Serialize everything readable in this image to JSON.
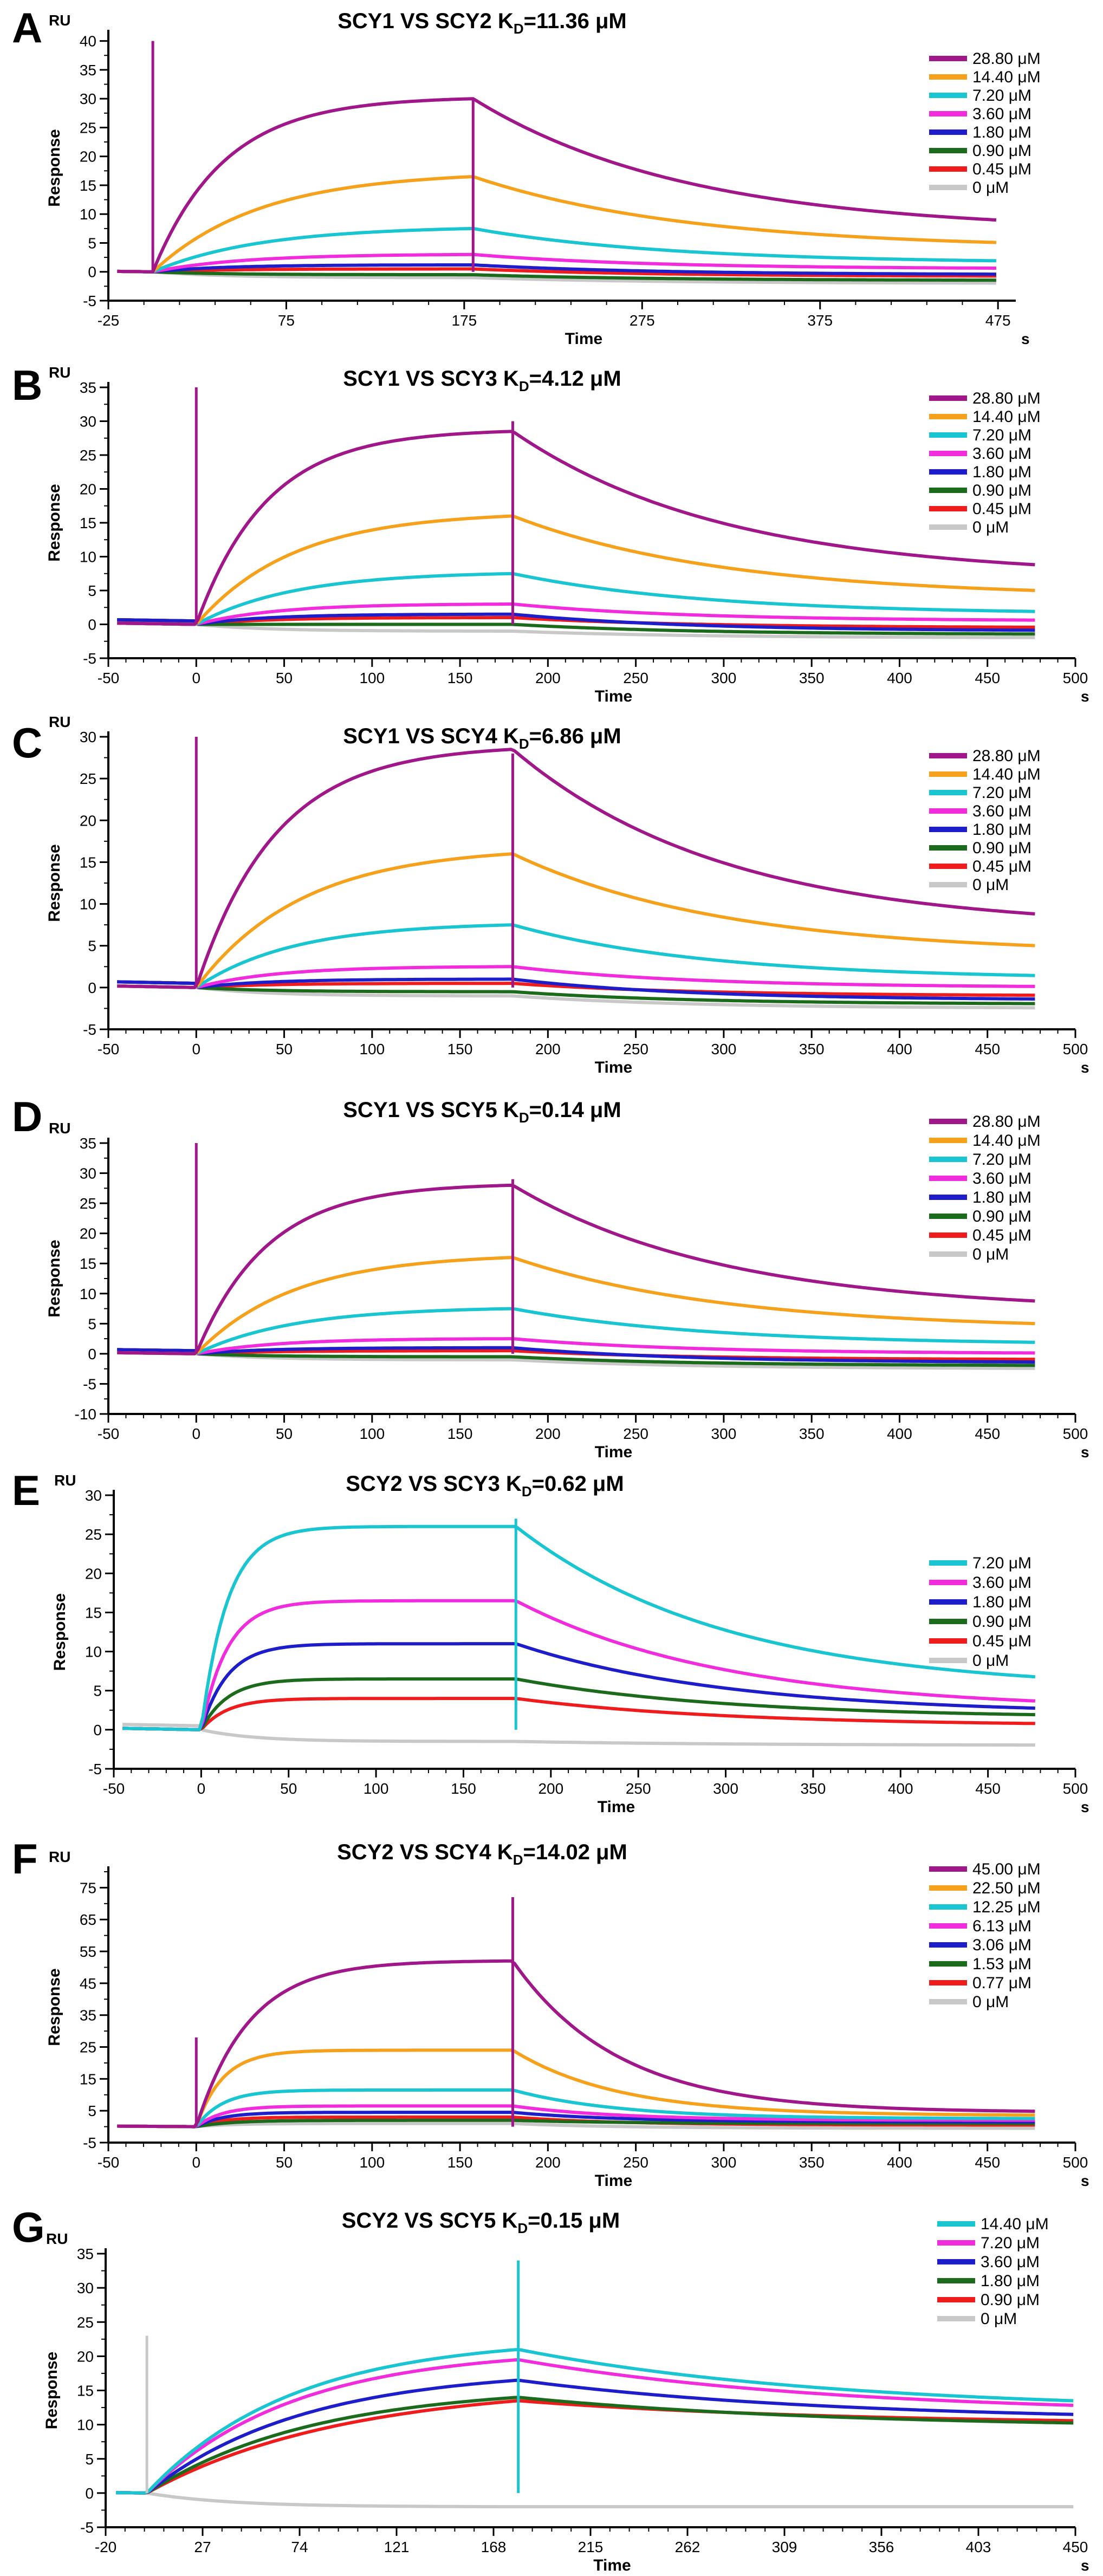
{
  "chart_data": [
    {
      "panel": "A",
      "type": "line",
      "title": "SCY1 VS SCY2   K",
      "title_sub": "D",
      "title_value": "=11.36 μM",
      "xlabel": "Time",
      "ylabel": "Response",
      "yunit": "RU",
      "xunit": "s",
      "xlim": [
        -25,
        485
      ],
      "ylim": [
        -5,
        41
      ],
      "xticks": [
        -25,
        75,
        175,
        275,
        375,
        475
      ],
      "yticks": [
        -5,
        0,
        5,
        10,
        15,
        20,
        25,
        30,
        35,
        40
      ],
      "x_end": 475,
      "spikes": [
        [
          0,
          40
        ],
        [
          180,
          30
        ]
      ],
      "legend_pos": "top-right",
      "series": [
        {
          "name": "28.80 μM",
          "color": "#a0178a",
          "assoc": 30,
          "dis": 7,
          "tau_a": 40,
          "tau_d": 120,
          "offset": 0
        },
        {
          "name": "14.40 μM",
          "color": "#f5a11c",
          "assoc": 16.5,
          "dis": 4,
          "tau_a": 60,
          "tau_d": 120,
          "offset": 0
        },
        {
          "name": "7.20  μM",
          "color": "#19c5d0",
          "assoc": 7.5,
          "dis": 1.5,
          "tau_a": 60,
          "tau_d": 110,
          "offset": 0
        },
        {
          "name": "3.60  μM",
          "color": "#f12cdd",
          "assoc": 3,
          "dis": 0.5,
          "tau_a": 50,
          "tau_d": 100,
          "offset": 0
        },
        {
          "name": "1.80  μM",
          "color": "#1d1dc9",
          "assoc": 1.2,
          "dis": -0.5,
          "tau_a": 40,
          "tau_d": 100,
          "offset": 0
        },
        {
          "name": "0.90  μM",
          "color": "#1c6b1c",
          "assoc": -0.5,
          "dis": -1.5,
          "tau_a": 40,
          "tau_d": 100,
          "offset": 0
        },
        {
          "name": "0.45  μM",
          "color": "#ee1c1c",
          "assoc": 0.5,
          "dis": -0.8,
          "tau_a": 40,
          "tau_d": 100,
          "offset": 0
        },
        {
          "name": "0      μM",
          "color": "#c8c8c8",
          "assoc": -1,
          "dis": -2,
          "tau_a": 40,
          "tau_d": 100,
          "offset": 0
        }
      ]
    },
    {
      "panel": "B",
      "type": "line",
      "title": "SCY1 VS SCY3   K",
      "title_sub": "D",
      "title_value": "=4.12 μM",
      "xlabel": "Time",
      "ylabel": "Response",
      "yunit": "RU",
      "xunit": "s",
      "xlim": [
        -50,
        500
      ],
      "ylim": [
        -5,
        35
      ],
      "xticks": [
        -50,
        0,
        50,
        100,
        150,
        200,
        250,
        300,
        350,
        400,
        450,
        500
      ],
      "yticks": [
        -5,
        0,
        5,
        10,
        15,
        20,
        25,
        30,
        35
      ],
      "x_end": 478,
      "spikes": [
        [
          0,
          35
        ],
        [
          180,
          30
        ]
      ],
      "legend_pos": "top-right",
      "series": [
        {
          "name": "28.80 μM",
          "color": "#a0178a",
          "assoc": 28.5,
          "dis": 7,
          "tau_a": 40,
          "tau_d": 120,
          "offset": 0
        },
        {
          "name": "14.40 μM",
          "color": "#f5a11c",
          "assoc": 16,
          "dis": 4,
          "tau_a": 55,
          "tau_d": 120,
          "offset": 0
        },
        {
          "name": "7.20  μM",
          "color": "#19c5d0",
          "assoc": 7.5,
          "dis": 1.5,
          "tau_a": 55,
          "tau_d": 110,
          "offset": 0
        },
        {
          "name": "3.60  μM",
          "color": "#f12cdd",
          "assoc": 3,
          "dis": 0.5,
          "tau_a": 45,
          "tau_d": 100,
          "offset": 0
        },
        {
          "name": "1.80  μM",
          "color": "#1d1dc9",
          "assoc": 1.5,
          "dis": -1,
          "tau_a": 40,
          "tau_d": 100,
          "offset": 0.5
        },
        {
          "name": "0.90  μM",
          "color": "#1c6b1c",
          "assoc": 0,
          "dis": -1.5,
          "tau_a": 40,
          "tau_d": 100,
          "offset": 0.5
        },
        {
          "name": "0.45  μM",
          "color": "#ee1c1c",
          "assoc": 1,
          "dis": -0.5,
          "tau_a": 40,
          "tau_d": 100,
          "offset": 0.5
        },
        {
          "name": "0      μM",
          "color": "#c8c8c8",
          "assoc": -1,
          "dis": -2,
          "tau_a": 40,
          "tau_d": 100,
          "offset": 0.5
        }
      ]
    },
    {
      "panel": "C",
      "type": "line",
      "title": "SCY1 VS SCY4   K",
      "title_sub": "D",
      "title_value": "=6.86 μM",
      "xlabel": "Time",
      "ylabel": "Response",
      "yunit": "RU",
      "xunit": "s",
      "xlim": [
        -50,
        500
      ],
      "ylim": [
        -5,
        30
      ],
      "xticks": [
        -50,
        0,
        50,
        100,
        150,
        200,
        250,
        300,
        350,
        400,
        450,
        500
      ],
      "yticks": [
        -5,
        0,
        5,
        10,
        15,
        20,
        25,
        30
      ],
      "x_end": 478,
      "spikes": [
        [
          0,
          30
        ],
        [
          180,
          28
        ]
      ],
      "legend_pos": "top-right",
      "series": [
        {
          "name": "28.80 μM",
          "color": "#a0178a",
          "assoc": 28.5,
          "dis": 7,
          "tau_a": 45,
          "tau_d": 120,
          "offset": 0
        },
        {
          "name": "14.40 μM",
          "color": "#f5a11c",
          "assoc": 16,
          "dis": 4,
          "tau_a": 60,
          "tau_d": 120,
          "offset": 0
        },
        {
          "name": "7.20  μM",
          "color": "#19c5d0",
          "assoc": 7.5,
          "dis": 1,
          "tau_a": 55,
          "tau_d": 110,
          "offset": 0
        },
        {
          "name": "3.60  μM",
          "color": "#f12cdd",
          "assoc": 2.5,
          "dis": 0,
          "tau_a": 45,
          "tau_d": 100,
          "offset": 0
        },
        {
          "name": "1.80  μM",
          "color": "#1d1dc9",
          "assoc": 1,
          "dis": -1.5,
          "tau_a": 40,
          "tau_d": 100,
          "offset": 0.5
        },
        {
          "name": "0.90  μM",
          "color": "#1c6b1c",
          "assoc": -0.5,
          "dis": -2,
          "tau_a": 40,
          "tau_d": 100,
          "offset": 0.5
        },
        {
          "name": "0.45  μM",
          "color": "#ee1c1c",
          "assoc": 0.5,
          "dis": -1,
          "tau_a": 40,
          "tau_d": 100,
          "offset": 0.5
        },
        {
          "name": "0      μM",
          "color": "#c8c8c8",
          "assoc": -1,
          "dis": -2.5,
          "tau_a": 40,
          "tau_d": 100,
          "offset": 0.5
        }
      ]
    },
    {
      "panel": "D",
      "type": "line",
      "title": "SCY1 VS SCY5   K",
      "title_sub": "D",
      "title_value": "=0.14 μM",
      "xlabel": "Time",
      "ylabel": "Response",
      "yunit": "RU",
      "xunit": "s",
      "xlim": [
        -50,
        500
      ],
      "ylim": [
        -10,
        35
      ],
      "xticks": [
        -50,
        0,
        50,
        100,
        150,
        200,
        250,
        300,
        350,
        400,
        450,
        500
      ],
      "yticks": [
        -10,
        -5,
        0,
        5,
        10,
        15,
        20,
        25,
        30,
        35
      ],
      "x_end": 478,
      "spikes": [
        [
          0,
          35
        ],
        [
          180,
          29
        ]
      ],
      "legend_pos": "top-right",
      "series": [
        {
          "name": "28.80 μM",
          "color": "#a0178a",
          "assoc": 28,
          "dis": 7,
          "tau_a": 40,
          "tau_d": 120,
          "offset": 0
        },
        {
          "name": "14.40 μM",
          "color": "#f5a11c",
          "assoc": 16,
          "dis": 4,
          "tau_a": 55,
          "tau_d": 120,
          "offset": 0
        },
        {
          "name": "7.20  μM",
          "color": "#19c5d0",
          "assoc": 7.5,
          "dis": 1.5,
          "tau_a": 55,
          "tau_d": 110,
          "offset": 0
        },
        {
          "name": "3.60  μM",
          "color": "#f12cdd",
          "assoc": 2.5,
          "dis": 0,
          "tau_a": 45,
          "tau_d": 100,
          "offset": 0
        },
        {
          "name": "1.80  μM",
          "color": "#1d1dc9",
          "assoc": 1,
          "dis": -1.5,
          "tau_a": 40,
          "tau_d": 100,
          "offset": 0.5
        },
        {
          "name": "0.90  μM",
          "color": "#1c6b1c",
          "assoc": -0.5,
          "dis": -2,
          "tau_a": 40,
          "tau_d": 100,
          "offset": 0.5
        },
        {
          "name": "0.45  μM",
          "color": "#ee1c1c",
          "assoc": 0.5,
          "dis": -1,
          "tau_a": 40,
          "tau_d": 100,
          "offset": 0.5
        },
        {
          "name": "0      μM",
          "color": "#c8c8c8",
          "assoc": -1,
          "dis": -2.5,
          "tau_a": 40,
          "tau_d": 100,
          "offset": 0.5
        }
      ]
    },
    {
      "panel": "E",
      "type": "line",
      "title": "SCY2 VS SCY3   K",
      "title_sub": "D",
      "title_value": "=0.62 μM",
      "xlabel": "Time",
      "ylabel": "Response",
      "yunit": "RU",
      "xunit": "s",
      "xlim": [
        -50,
        500
      ],
      "ylim": [
        -5,
        30
      ],
      "xticks": [
        -50,
        0,
        50,
        100,
        150,
        200,
        250,
        300,
        350,
        400,
        450,
        500
      ],
      "yticks": [
        -5,
        0,
        5,
        10,
        15,
        20,
        25,
        30
      ],
      "x_end": 478,
      "spikes": [
        [
          180,
          27
        ]
      ],
      "legend_pos": "right",
      "series": [
        {
          "name": "7.20  μM",
          "color": "#19c5d0",
          "assoc": 26,
          "dis": 5,
          "tau_a": 15,
          "tau_d": 120,
          "offset": 0
        },
        {
          "name": "3.60  μM",
          "color": "#f12cdd",
          "assoc": 16.5,
          "dis": 2.5,
          "tau_a": 15,
          "tau_d": 120,
          "offset": 0
        },
        {
          "name": "1.80  μM",
          "color": "#1d1dc9",
          "assoc": 11,
          "dis": 2,
          "tau_a": 15,
          "tau_d": 120,
          "offset": 0
        },
        {
          "name": "0.90  μM",
          "color": "#1c6b1c",
          "assoc": 6.5,
          "dis": 1.5,
          "tau_a": 15,
          "tau_d": 120,
          "offset": 0
        },
        {
          "name": "0.45  μM",
          "color": "#ee1c1c",
          "assoc": 4,
          "dis": 0.5,
          "tau_a": 15,
          "tau_d": 120,
          "offset": 0
        },
        {
          "name": "0      μM",
          "color": "#c8c8c8",
          "assoc": -1.5,
          "dis": -2,
          "tau_a": 30,
          "tau_d": 120,
          "offset": 0.5
        }
      ]
    },
    {
      "panel": "F",
      "type": "line",
      "title": "SCY2 VS SCY4   K",
      "title_sub": "D",
      "title_value": "=14.02 μM",
      "xlabel": "Time",
      "ylabel": "Response",
      "yunit": "RU",
      "xunit": "s",
      "xlim": [
        -50,
        500
      ],
      "ylim": [
        -5,
        80
      ],
      "xticks": [
        -50,
        0,
        50,
        100,
        150,
        200,
        250,
        300,
        350,
        400,
        450,
        500
      ],
      "yticks": [
        -5,
        5,
        15,
        25,
        35,
        45,
        55,
        65,
        75
      ],
      "x_end": 478,
      "spikes": [
        [
          0,
          28
        ],
        [
          180,
          72
        ]
      ],
      "legend_pos": "top-right",
      "series": [
        {
          "name": "45.00 μM",
          "color": "#a0178a",
          "assoc": 52,
          "dis": 4.5,
          "tau_a": 30,
          "tau_d": 60,
          "offset": 0
        },
        {
          "name": "22.50 μM",
          "color": "#f5a11c",
          "assoc": 24,
          "dis": 3.5,
          "tau_a": 15,
          "tau_d": 60,
          "offset": 0
        },
        {
          "name": "12.25 μM",
          "color": "#19c5d0",
          "assoc": 11.5,
          "dis": 2.5,
          "tau_a": 15,
          "tau_d": 60,
          "offset": 0
        },
        {
          "name": "6.13  μM",
          "color": "#f12cdd",
          "assoc": 6.5,
          "dis": 2,
          "tau_a": 15,
          "tau_d": 60,
          "offset": 0
        },
        {
          "name": "3.06  μM",
          "color": "#1d1dc9",
          "assoc": 4.5,
          "dis": 1.5,
          "tau_a": 15,
          "tau_d": 60,
          "offset": 0
        },
        {
          "name": "1.53  μM",
          "color": "#1c6b1c",
          "assoc": 2,
          "dis": 1,
          "tau_a": 20,
          "tau_d": 60,
          "offset": 0
        },
        {
          "name": "0.77  μM",
          "color": "#ee1c1c",
          "assoc": 3,
          "dis": 0.5,
          "tau_a": 15,
          "tau_d": 60,
          "offset": 0
        },
        {
          "name": "0      μM",
          "color": "#c8c8c8",
          "assoc": 1,
          "dis": -0.5,
          "tau_a": 20,
          "tau_d": 60,
          "offset": 0
        }
      ]
    },
    {
      "panel": "G",
      "type": "line",
      "title": "SCY2 VS SCY5   K",
      "title_sub": "D",
      "title_value": "=0.15 μM",
      "xlabel": "Time",
      "ylabel": "Response",
      "yunit": "RU",
      "xunit": "s",
      "xlim": [
        -20,
        450
      ],
      "ylim": [
        -5,
        35
      ],
      "xticks": [
        -20,
        27,
        74,
        121,
        168,
        215,
        262,
        309,
        356,
        403,
        450
      ],
      "yticks": [
        -5,
        0,
        5,
        10,
        15,
        20,
        25,
        30,
        35
      ],
      "x_end": 450,
      "spikes": [
        [
          0,
          23
        ],
        [
          180,
          34
        ]
      ],
      "legend_pos": "top-right",
      "series": [
        {
          "name": "14.40 μM",
          "color": "#19c5d0",
          "assoc": 21,
          "dis": 12,
          "tau_a": 70,
          "tau_d": 150,
          "offset": 0
        },
        {
          "name": "7.20  μM",
          "color": "#f12cdd",
          "assoc": 19.5,
          "dis": 11.5,
          "tau_a": 70,
          "tau_d": 150,
          "offset": 0
        },
        {
          "name": "3.60  μM",
          "color": "#1d1dc9",
          "assoc": 16.5,
          "dis": 10.5,
          "tau_a": 75,
          "tau_d": 150,
          "offset": 0
        },
        {
          "name": "1.80  μM",
          "color": "#1c6b1c",
          "assoc": 14,
          "dis": 9.5,
          "tau_a": 80,
          "tau_d": 150,
          "offset": 0
        },
        {
          "name": "0.90  μM",
          "color": "#ee1c1c",
          "assoc": 13.5,
          "dis": 10,
          "tau_a": 95,
          "tau_d": 150,
          "offset": 0
        },
        {
          "name": "0      μM",
          "color": "#c8c8c8",
          "assoc": -2,
          "dis": -2,
          "tau_a": 40,
          "tau_d": 150,
          "offset": 0
        }
      ]
    }
  ]
}
